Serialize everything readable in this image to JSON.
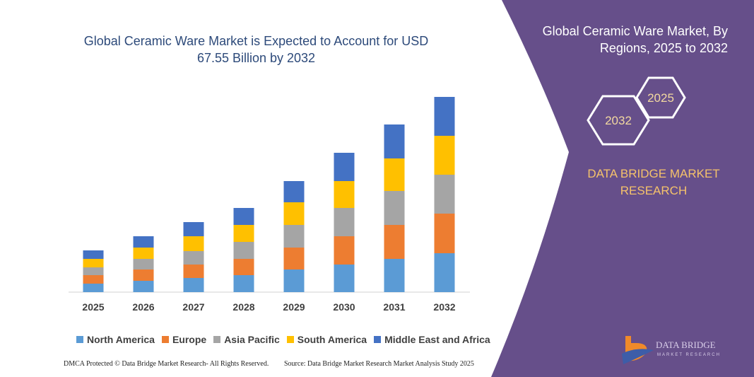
{
  "chart_data": {
    "type": "stacked_bar",
    "title": "Global Ceramic Ware Market is Expected to Account for USD 67.55 Billion by 2032",
    "categories": [
      "2025",
      "2026",
      "2027",
      "2028",
      "2029",
      "2030",
      "2031",
      "2032"
    ],
    "series": [
      {
        "name": "North America",
        "color": "#5b9bd5",
        "values": [
          12,
          16,
          20,
          24,
          32,
          39,
          47,
          55
        ]
      },
      {
        "name": "Europe",
        "color": "#ed7d31",
        "values": [
          12,
          16,
          19,
          23,
          31,
          40,
          48,
          56
        ]
      },
      {
        "name": "Asia Pacific",
        "color": "#a5a5a5",
        "values": [
          11,
          15,
          19,
          24,
          32,
          40,
          48,
          55
        ]
      },
      {
        "name": "South America",
        "color": "#ffc000",
        "values": [
          12,
          16,
          21,
          24,
          32,
          38,
          46,
          55
        ]
      },
      {
        "name": "Middle East and Africa",
        "color": "#4472c4",
        "values": [
          12,
          16,
          20,
          24,
          30,
          40,
          48,
          55
        ]
      }
    ]
  },
  "panel": {
    "title": "Global Ceramic Ware Market, By Regions, 2025 to 2032",
    "hex_start": "2025",
    "hex_end": "2032",
    "brand": [
      "DATA BRIDGE MARKET",
      "RESEARCH"
    ],
    "logo": [
      "DATA BRIDGE",
      "MARKET RESEARCH"
    ]
  },
  "footer": {
    "left": "DMCA Protected © Data Bridge Market Research- All Rights Reserved.",
    "right": "Source: Data Bridge Market Research Market Analysis Study 2025"
  }
}
